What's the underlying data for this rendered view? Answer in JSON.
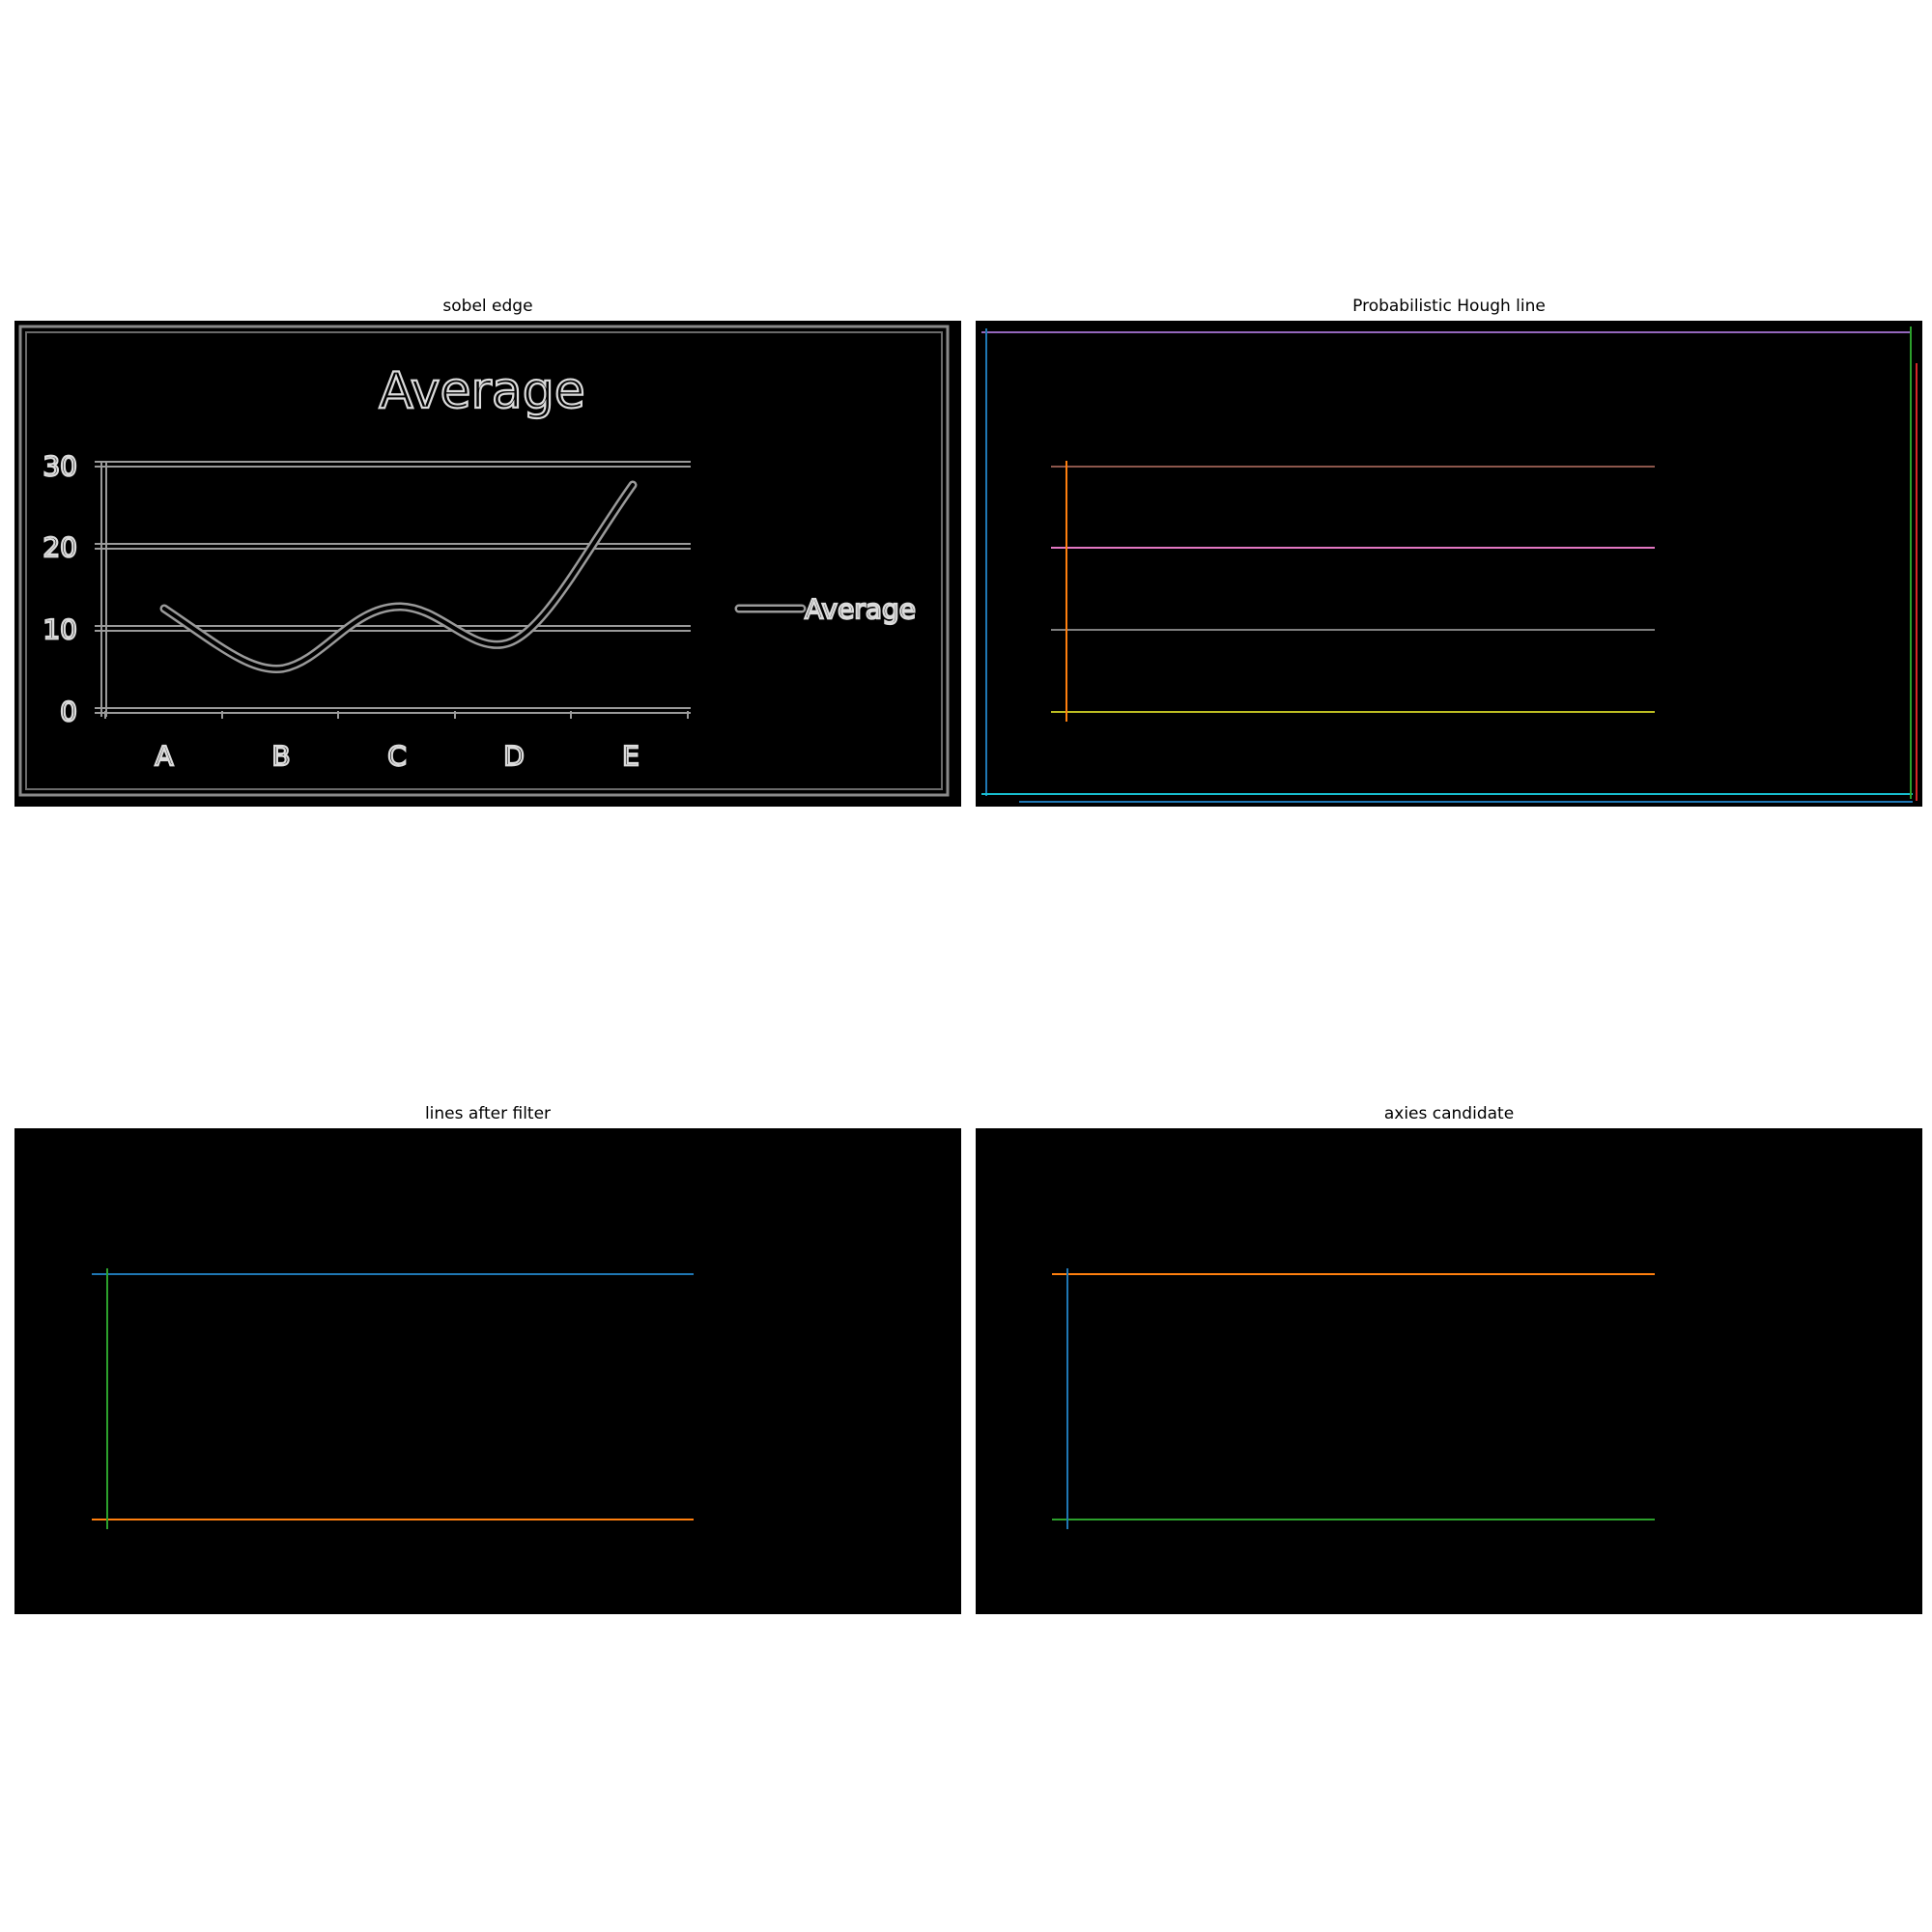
{
  "panels": [
    {
      "id": "sobel",
      "title": "sobel edge",
      "image": {
        "chart_title": "Average",
        "legend": "Average",
        "yticks": [
          "0",
          "10",
          "20",
          "30"
        ],
        "xticks": [
          "A",
          "B",
          "C",
          "D",
          "E"
        ]
      }
    },
    {
      "id": "hough",
      "title": "Probabilistic Hough line"
    },
    {
      "id": "filter",
      "title": "lines after filter"
    },
    {
      "id": "axes",
      "title": "axies candidate"
    }
  ],
  "line_colors": {
    "blue": "#1f77b4",
    "orange": "#ff7f0e",
    "green": "#2ca02c",
    "red": "#d62728",
    "purple": "#9467bd",
    "brown": "#8c564b",
    "pink": "#e377c2",
    "gray": "#7f7f7f",
    "olive": "#bcbd22",
    "cyan": "#17becf"
  }
}
